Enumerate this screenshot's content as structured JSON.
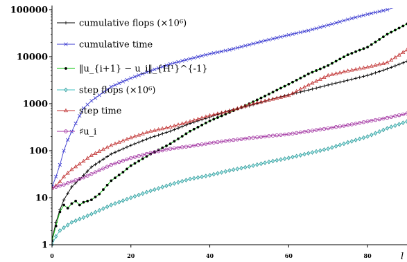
{
  "chart_data": {
    "type": "line",
    "title": "",
    "xlabel": "l",
    "ylabel": "",
    "y_scale": "log",
    "xlim": [
      0,
      90
    ],
    "ylim": [
      1,
      100000
    ],
    "x_ticks": [
      "0",
      "20",
      "40",
      "60",
      "80"
    ],
    "y_ticks": [
      "1",
      "10",
      "100",
      "1000",
      "10000",
      "100000"
    ],
    "grid": false,
    "legend_position": "top-left",
    "series": [
      {
        "name": "cumulative flops (×10⁶)",
        "color": "#000000",
        "marker": "plus",
        "x": [
          0,
          1,
          2,
          3,
          5,
          8,
          10,
          15,
          20,
          25,
          30,
          35,
          40,
          45,
          50,
          55,
          60,
          65,
          70,
          75,
          80,
          85,
          90
        ],
        "y": [
          1.3,
          3,
          5.5,
          9,
          17,
          30,
          45,
          85,
          130,
          190,
          260,
          380,
          520,
          720,
          900,
          1200,
          1550,
          1950,
          2500,
          3150,
          4000,
          5500,
          8000
        ]
      },
      {
        "name": "cumulative time",
        "color": "#3a3ad0",
        "marker": "x",
        "x": [
          0,
          1,
          2,
          3,
          4,
          6,
          8,
          10,
          15,
          20,
          25,
          30,
          35,
          40,
          45,
          50,
          55,
          60,
          65,
          70,
          75,
          80,
          85,
          90
        ],
        "y": [
          17,
          28,
          50,
          100,
          170,
          380,
          800,
          1150,
          2300,
          3500,
          5000,
          7000,
          9000,
          11500,
          14000,
          18000,
          23000,
          29000,
          36000,
          47000,
          62000,
          80000,
          100000,
          130000
        ]
      },
      {
        "name": "‖u_{i+1} − u_i‖_{H¹}^{-1}",
        "color": "#00c000",
        "marker": "dot",
        "x": [
          0,
          1,
          2,
          3,
          4,
          5,
          6,
          7,
          8,
          9,
          10,
          12,
          15,
          18,
          20,
          25,
          30,
          35,
          40,
          45,
          50,
          55,
          60,
          65,
          70,
          75,
          80,
          85,
          90
        ],
        "y": [
          1.2,
          2.5,
          5,
          7,
          6,
          7.5,
          8.5,
          7,
          8,
          8.5,
          9,
          12,
          23,
          35,
          48,
          85,
          140,
          260,
          430,
          650,
          1000,
          1600,
          2600,
          4300,
          6500,
          11000,
          16000,
          30000,
          50000
        ]
      },
      {
        "name": "step flops (×10⁶)",
        "color": "#40c0c0",
        "marker": "diamond",
        "x": [
          0,
          1,
          2,
          3,
          5,
          8,
          10,
          15,
          20,
          25,
          30,
          35,
          40,
          45,
          50,
          55,
          60,
          65,
          70,
          75,
          80,
          85,
          90
        ],
        "y": [
          1,
          1.5,
          2,
          2.3,
          3,
          3.8,
          4.5,
          7,
          10,
          14,
          19,
          25,
          30,
          38,
          46,
          58,
          70,
          88,
          110,
          150,
          200,
          300,
          420
        ]
      },
      {
        "name": "step time",
        "color": "#c03030",
        "marker": "triangle",
        "x": [
          0,
          1,
          2,
          3,
          5,
          8,
          10,
          15,
          20,
          25,
          30,
          35,
          40,
          45,
          50,
          55,
          60,
          65,
          70,
          75,
          80,
          85,
          90
        ],
        "y": [
          16,
          18,
          22,
          28,
          40,
          60,
          80,
          130,
          190,
          260,
          320,
          420,
          560,
          700,
          950,
          1200,
          1500,
          2500,
          4000,
          5000,
          6000,
          7500,
          14000
        ]
      },
      {
        "name": "♯u_i",
        "color": "#a030a0",
        "marker": "circle",
        "x": [
          0,
          1,
          2,
          3,
          5,
          8,
          10,
          15,
          20,
          25,
          30,
          35,
          40,
          45,
          50,
          55,
          60,
          65,
          70,
          75,
          80,
          85,
          90
        ],
        "y": [
          16,
          17,
          18,
          19,
          22,
          27,
          32,
          50,
          70,
          90,
          110,
          125,
          145,
          165,
          185,
          205,
          225,
          260,
          300,
          350,
          420,
          500,
          620
        ]
      }
    ]
  }
}
